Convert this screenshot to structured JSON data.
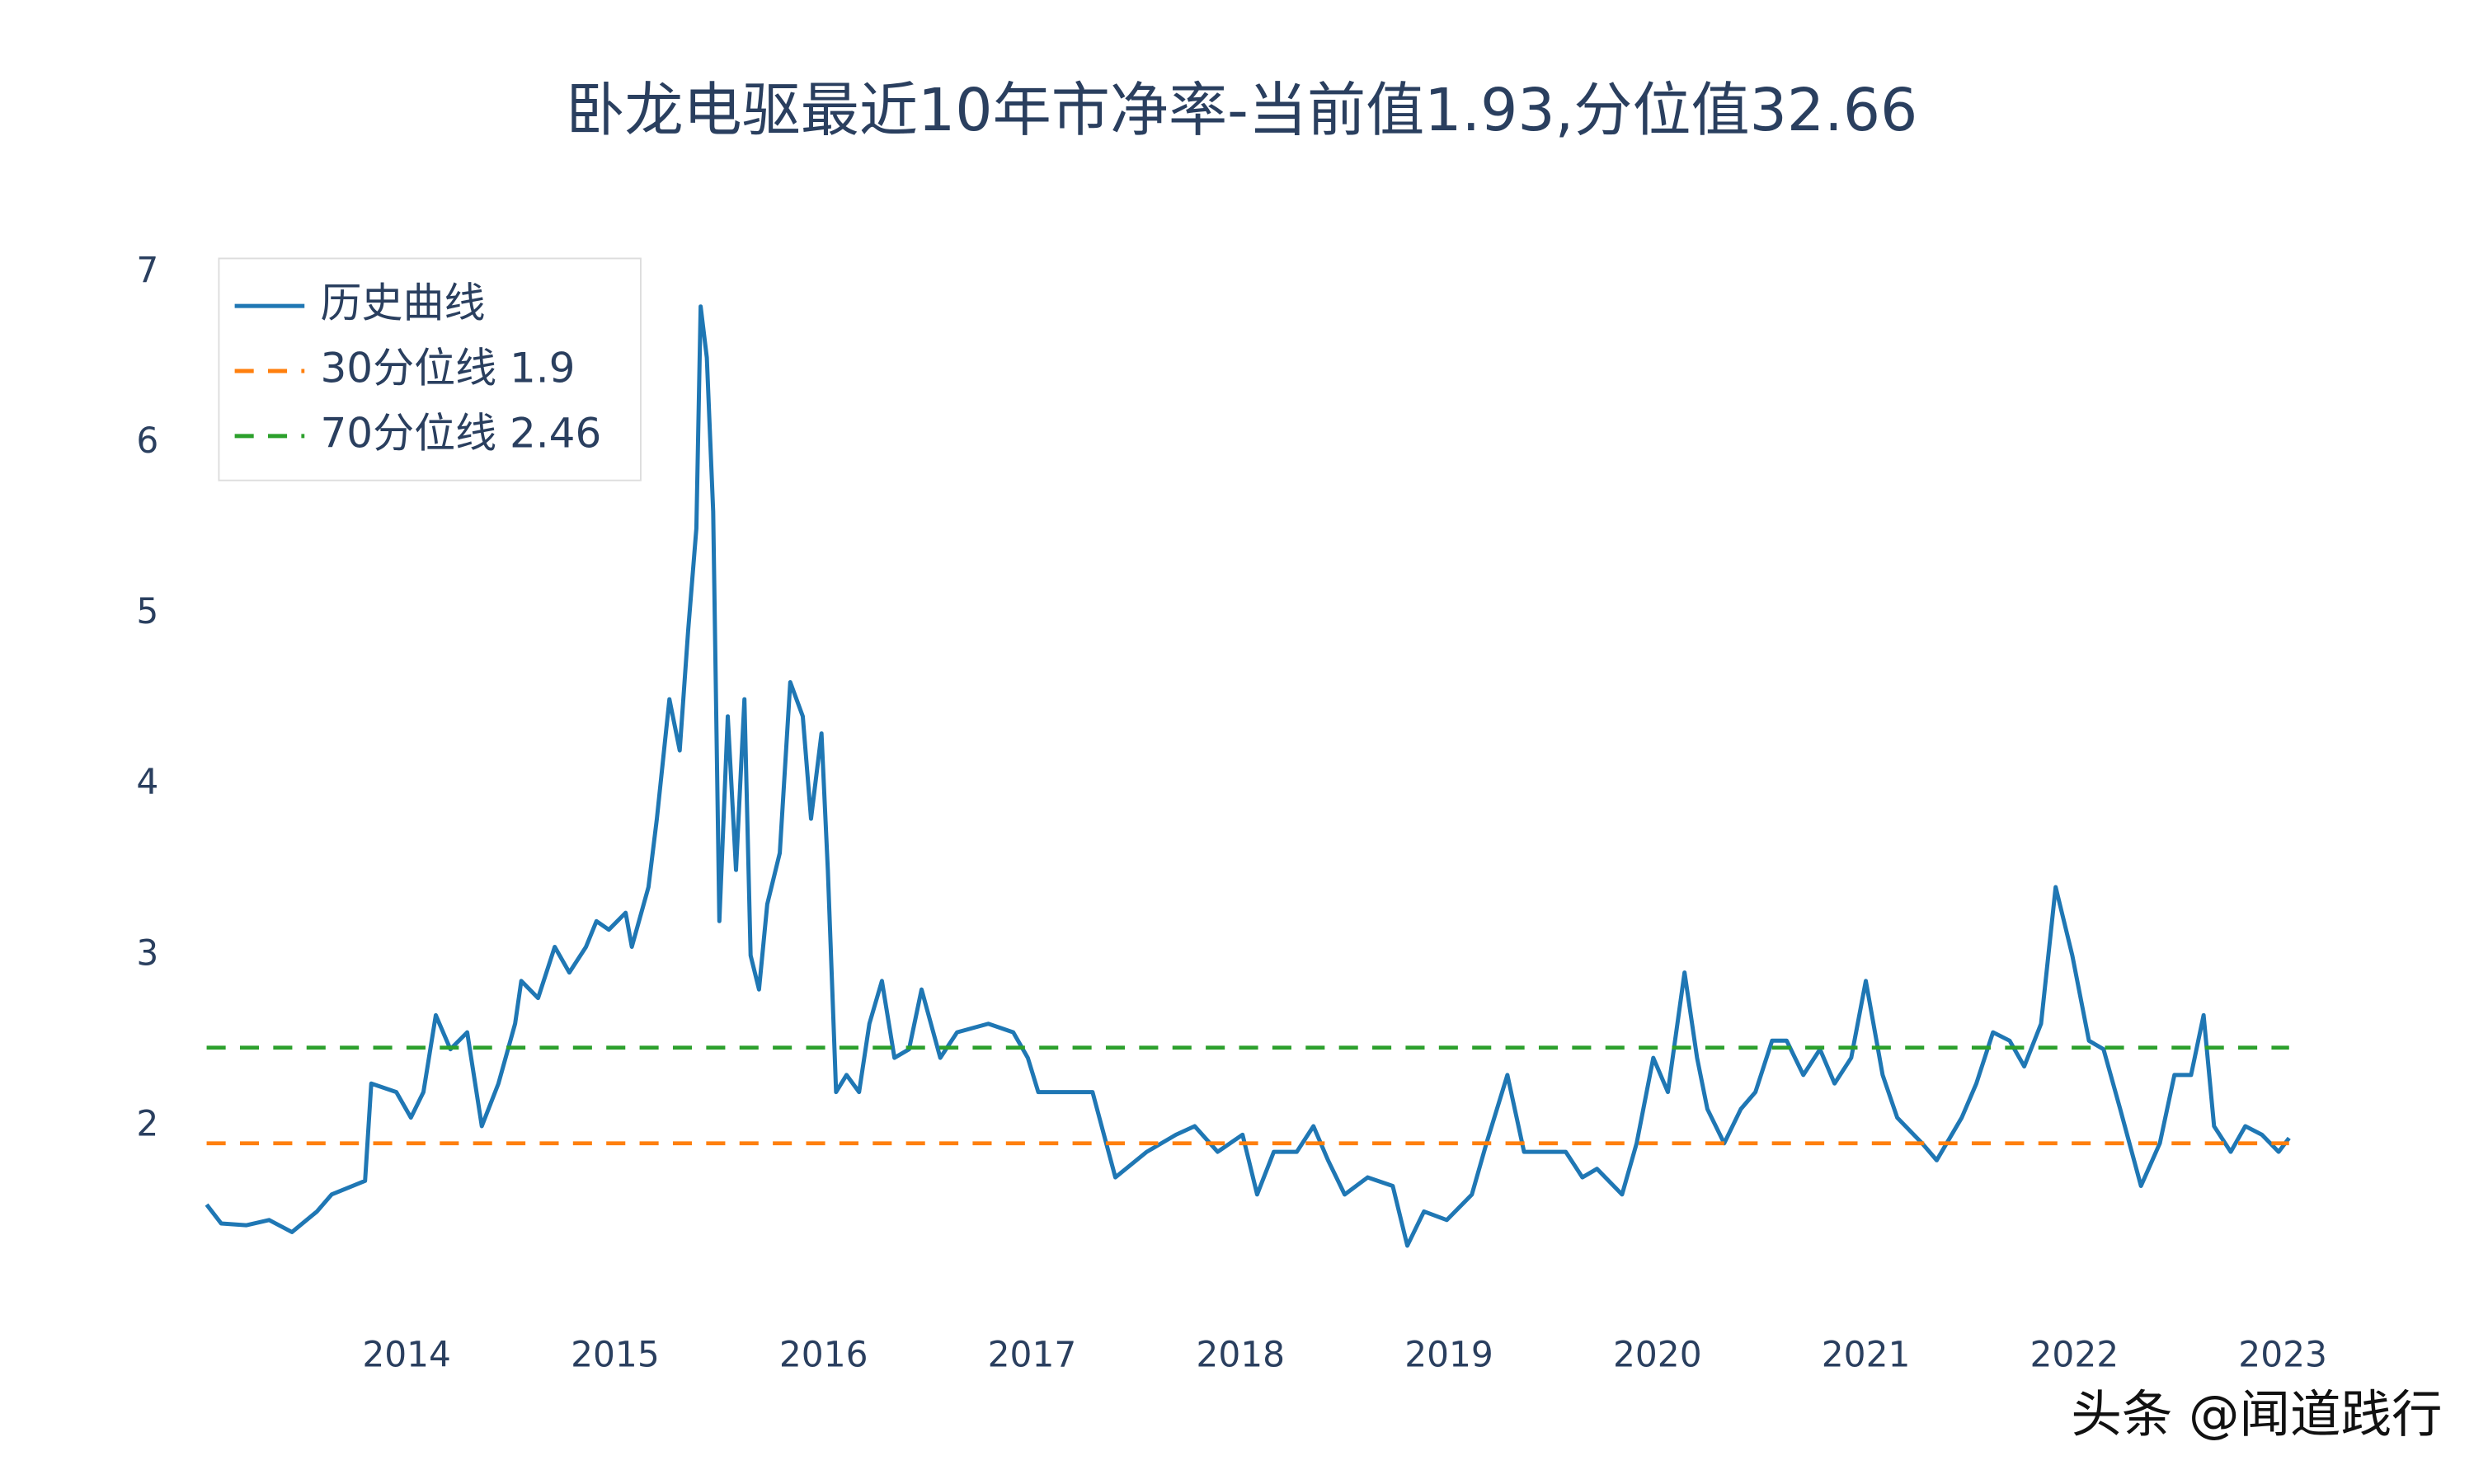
{
  "chart_data": {
    "type": "line",
    "title": "卧龙电驱最近10年市净率-当前值1.93,分位值32.66",
    "watermark": "头条 @闻道践行",
    "xlim": [
      2013.0,
      2023.05
    ],
    "xticks": [
      2014,
      2015,
      2016,
      2017,
      2018,
      2019,
      2020,
      2021,
      2022,
      2023
    ],
    "ylim": [
      1.0,
      7.1
    ],
    "yticks": [
      2,
      3,
      4,
      5,
      6,
      7
    ],
    "grid": false,
    "legend": "top-left",
    "series": [
      {
        "name": "历史曲线",
        "color": "#1f77b4",
        "dash": false,
        "x": [
          2013.04,
          2013.11,
          2013.23,
          2013.34,
          2013.45,
          2013.57,
          2013.64,
          2013.8,
          2013.83,
          2013.95,
          2014.02,
          2014.08,
          2014.14,
          2014.21,
          2014.29,
          2014.36,
          2014.44,
          2014.52,
          2014.55,
          2014.63,
          2014.71,
          2014.78,
          2014.86,
          2014.91,
          2014.97,
          2015.05,
          2015.08,
          2015.16,
          2015.2,
          2015.26,
          2015.31,
          2015.35,
          2015.39,
          2015.41,
          2015.44,
          2015.47,
          2015.5,
          2015.54,
          2015.58,
          2015.62,
          2015.65,
          2015.69,
          2015.73,
          2015.79,
          2015.84,
          2015.9,
          2015.94,
          2015.99,
          2016.02,
          2016.06,
          2016.11,
          2016.17,
          2016.22,
          2016.28,
          2016.34,
          2016.41,
          2016.47,
          2016.56,
          2016.64,
          2016.79,
          2016.91,
          2016.98,
          2017.03,
          2017.17,
          2017.29,
          2017.4,
          2017.55,
          2017.69,
          2017.78,
          2017.89,
          2018.01,
          2018.08,
          2018.16,
          2018.27,
          2018.35,
          2018.42,
          2018.5,
          2018.61,
          2018.73,
          2018.8,
          2018.88,
          2018.99,
          2019.11,
          2019.18,
          2019.28,
          2019.36,
          2019.45,
          2019.56,
          2019.64,
          2019.71,
          2019.83,
          2019.9,
          2019.98,
          2020.05,
          2020.13,
          2020.19,
          2020.24,
          2020.32,
          2020.4,
          2020.47,
          2020.55,
          2020.62,
          2020.7,
          2020.78,
          2020.85,
          2020.93,
          2021.0,
          2021.08,
          2021.15,
          2021.27,
          2021.34,
          2021.46,
          2021.53,
          2021.61,
          2021.69,
          2021.76,
          2021.84,
          2021.91,
          2021.99,
          2022.07,
          2022.14,
          2022.22,
          2022.32,
          2022.41,
          2022.48,
          2022.56,
          2022.62,
          2022.67,
          2022.75,
          2022.82,
          2022.9,
          2022.98,
          2023.03
        ],
        "values": [
          1.54,
          1.43,
          1.42,
          1.45,
          1.38,
          1.5,
          1.6,
          1.68,
          2.25,
          2.2,
          2.05,
          2.2,
          2.65,
          2.45,
          2.55,
          2.0,
          2.25,
          2.6,
          2.85,
          2.75,
          3.05,
          2.9,
          3.05,
          3.2,
          3.15,
          3.25,
          3.05,
          3.4,
          3.8,
          4.5,
          4.2,
          4.9,
          5.5,
          6.8,
          6.5,
          5.6,
          3.2,
          4.4,
          3.5,
          4.5,
          3.0,
          2.8,
          3.3,
          3.6,
          4.6,
          4.4,
          3.8,
          4.3,
          3.5,
          2.2,
          2.3,
          2.2,
          2.6,
          2.85,
          2.4,
          2.45,
          2.8,
          2.4,
          2.55,
          2.6,
          2.55,
          2.4,
          2.2,
          2.2,
          2.2,
          1.7,
          1.85,
          1.95,
          2.0,
          1.85,
          1.95,
          1.6,
          1.85,
          1.85,
          2.0,
          1.8,
          1.6,
          1.7,
          1.65,
          1.3,
          1.5,
          1.45,
          1.6,
          1.9,
          2.3,
          1.85,
          1.85,
          1.85,
          1.7,
          1.75,
          1.6,
          1.9,
          2.4,
          2.2,
          2.9,
          2.4,
          2.1,
          1.9,
          2.1,
          2.2,
          2.5,
          2.5,
          2.3,
          2.45,
          2.25,
          2.4,
          2.85,
          2.3,
          2.05,
          1.9,
          1.8,
          2.05,
          2.25,
          2.55,
          2.5,
          2.35,
          2.6,
          3.4,
          3.0,
          2.5,
          2.45,
          2.1,
          1.65,
          1.9,
          2.3,
          2.3,
          2.65,
          2.0,
          1.85,
          2.0,
          1.95,
          1.85,
          1.93
        ]
      },
      {
        "name": "30分位线 1.9",
        "color": "#ff7f0e",
        "dash": true,
        "x": [
          2013.04,
          2023.03
        ],
        "values": [
          1.9,
          1.9
        ]
      },
      {
        "name": "70分位线 2.46",
        "color": "#2ca02c",
        "dash": true,
        "x": [
          2013.04,
          2023.03
        ],
        "values": [
          2.46,
          2.46
        ]
      }
    ]
  }
}
